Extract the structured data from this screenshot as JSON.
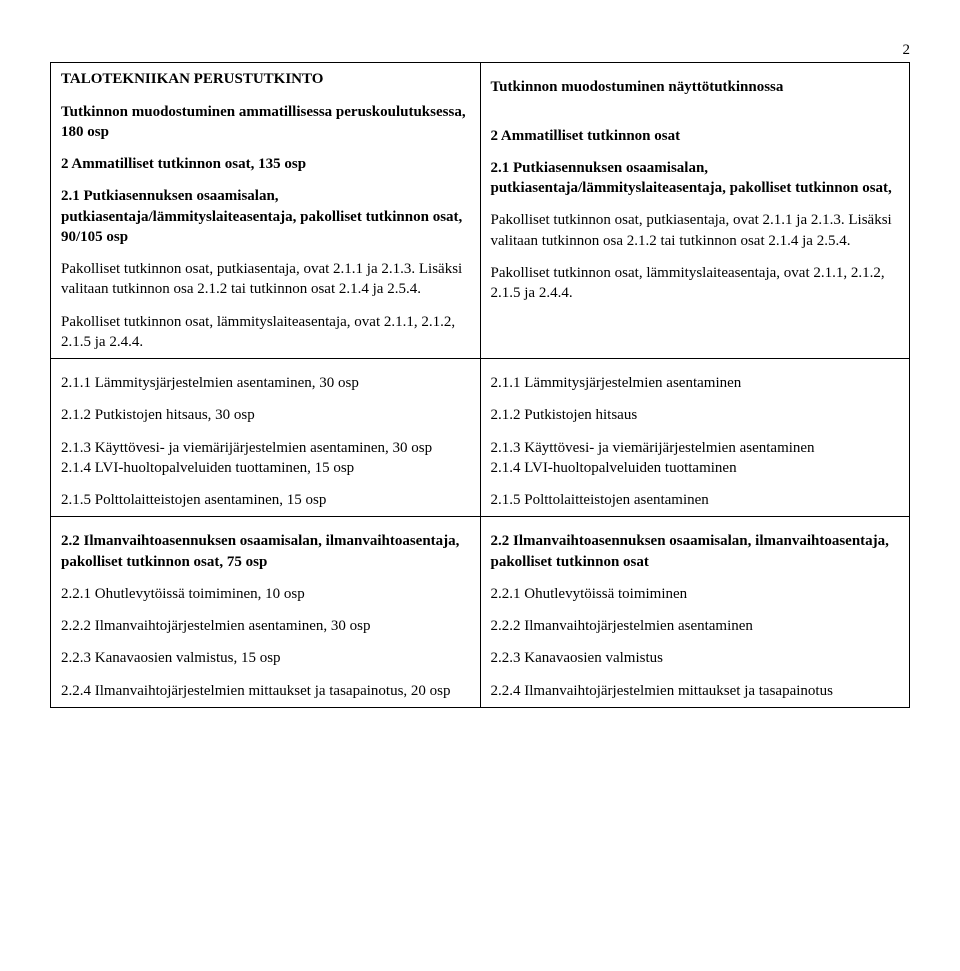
{
  "page_number": "2",
  "section1": {
    "left": {
      "title": "TALOTEKNIIKAN PERUSTUTKINTO",
      "sub1": "Tutkinnon muodostuminen ammatillisessa peruskoulutuksessa, 180 osp",
      "sub2": "2 Ammatilliset tutkinnon osat, 135 osp",
      "p1": "2.1 Putkiasennuksen osaamisalan, putkiasentaja/lämmityslaiteasentaja, pakolliset tutkinnon osat, 90/105 osp",
      "p2": "Pakolliset tutkinnon osat, putkiasentaja, ovat 2.1.1 ja 2.1.3. Lisäksi valitaan tutkinnon osa 2.1.2 tai tutkinnon osat 2.1.4 ja 2.5.4.",
      "p3": "Pakolliset tutkinnon osat, lämmityslaiteasentaja, ovat 2.1.1, 2.1.2, 2.1.5 ja 2.4.4."
    },
    "right": {
      "sub1": "Tutkinnon muodostuminen näyttötutkinnossa",
      "sub2": "2 Ammatilliset tutkinnon osat",
      "p1": "2.1 Putkiasennuksen osaamisalan, putkiasentaja/lämmityslaiteasentaja, pakolliset tutkinnon osat,",
      "p2": "Pakolliset tutkinnon osat, putkiasentaja, ovat 2.1.1 ja 2.1.3. Lisäksi valitaan tutkinnon osa 2.1.2 tai tutkinnon osat 2.1.4 ja 2.5.4.",
      "p3": "Pakolliset tutkinnon osat, lämmityslaiteasentaja, ovat 2.1.1, 2.1.2, 2.1.5 ja 2.4.4."
    }
  },
  "section2": {
    "left": {
      "l1": "2.1.1  Lämmitysjärjestelmien asentaminen, 30 osp",
      "l2": "2.1.2 Putkistojen hitsaus, 30 osp",
      "l3": "2.1.3 Käyttövesi- ja viemärijärjestelmien asentaminen, 30 osp",
      "l4": "2.1.4 LVI-huoltopalveluiden tuottaminen, 15 osp",
      "l5": "2.1.5 Polttolaitteistojen asentaminen, 15 osp"
    },
    "right": {
      "l1": "2.1.1  Lämmitysjärjestelmien asentaminen",
      "l2": "2.1.2 Putkistojen hitsaus",
      "l3": "2.1.3 Käyttövesi- ja viemärijärjestelmien asentaminen",
      "l4": "2.1.4 LVI-huoltopalveluiden tuottaminen",
      "l5": "2.1.5 Polttolaitteistojen asentaminen"
    }
  },
  "section3": {
    "left": {
      "p1": "2.2 Ilmanvaihtoasennuksen osaamisalan, ilmanvaihtoasentaja, pakolliset tutkinnon osat, 75 osp",
      "l1": "2.2.1 Ohutlevytöissä toimiminen, 10 osp",
      "l2": "2.2.2 Ilmanvaihtojärjestelmien asentaminen, 30 osp",
      "l3": "2.2.3 Kanavaosien valmistus, 15 osp",
      "l4": "2.2.4 Ilmanvaihtojärjestelmien mittaukset ja tasapainotus, 20 osp"
    },
    "right": {
      "p1": "2.2 Ilmanvaihtoasennuksen osaamisalan, ilmanvaihtoasentaja, pakolliset tutkinnon osat",
      "l1": "2.2.1 Ohutlevytöissä toimiminen",
      "l2": "2.2.2 Ilmanvaihtojärjestelmien asentaminen",
      "l3": "2.2.3 Kanavaosien valmistus",
      "l4": "2.2.4 Ilmanvaihtojärjestelmien mittaukset ja tasapainotus"
    }
  }
}
